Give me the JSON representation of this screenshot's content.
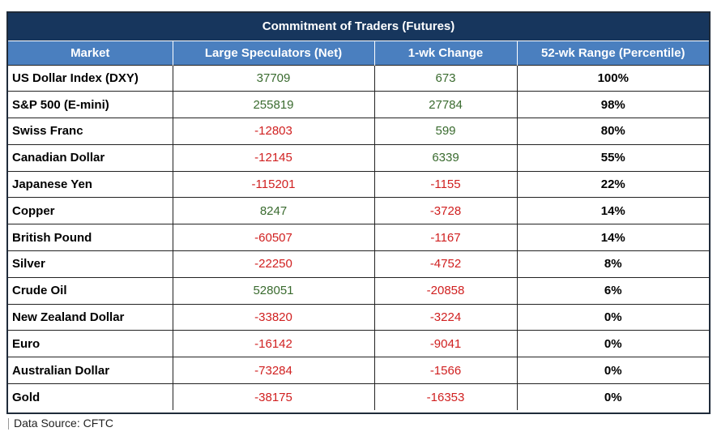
{
  "chart_data": {
    "type": "table",
    "title": "Commitment of Traders (Futures)",
    "columns": [
      "Market",
      "Large Speculators (Net)",
      "1-wk Change",
      "52-wk Range (Percentile)"
    ],
    "rows": [
      {
        "market": "US Dollar Index (DXY)",
        "net": 37709,
        "change": 673,
        "range": "100%"
      },
      {
        "market": "S&P 500 (E-mini)",
        "net": 255819,
        "change": 27784,
        "range": "98%"
      },
      {
        "market": "Swiss Franc",
        "net": -12803,
        "change": 599,
        "range": "80%"
      },
      {
        "market": "Canadian Dollar",
        "net": -12145,
        "change": 6339,
        "range": "55%"
      },
      {
        "market": "Japanese Yen",
        "net": -115201,
        "change": -1155,
        "range": "22%"
      },
      {
        "market": "Copper",
        "net": 8247,
        "change": -3728,
        "range": "14%"
      },
      {
        "market": "British Pound",
        "net": -60507,
        "change": -1167,
        "range": "14%"
      },
      {
        "market": "Silver",
        "net": -22250,
        "change": -4752,
        "range": "8%"
      },
      {
        "market": "Crude Oil",
        "net": 528051,
        "change": -20858,
        "range": "6%"
      },
      {
        "market": "New Zealand Dollar",
        "net": -33820,
        "change": -3224,
        "range": "0%"
      },
      {
        "market": "Euro",
        "net": -16142,
        "change": -9041,
        "range": "0%"
      },
      {
        "market": "Australian Dollar",
        "net": -73284,
        "change": -1566,
        "range": "0%"
      },
      {
        "market": "Gold",
        "net": -38175,
        "change": -16353,
        "range": "0%"
      }
    ]
  },
  "colors": {
    "title_bg": "#17365d",
    "header_bg": "#4a7fbf",
    "positive": "#3a6b2f",
    "negative": "#d02020"
  },
  "source": "Data Source: CFTC"
}
